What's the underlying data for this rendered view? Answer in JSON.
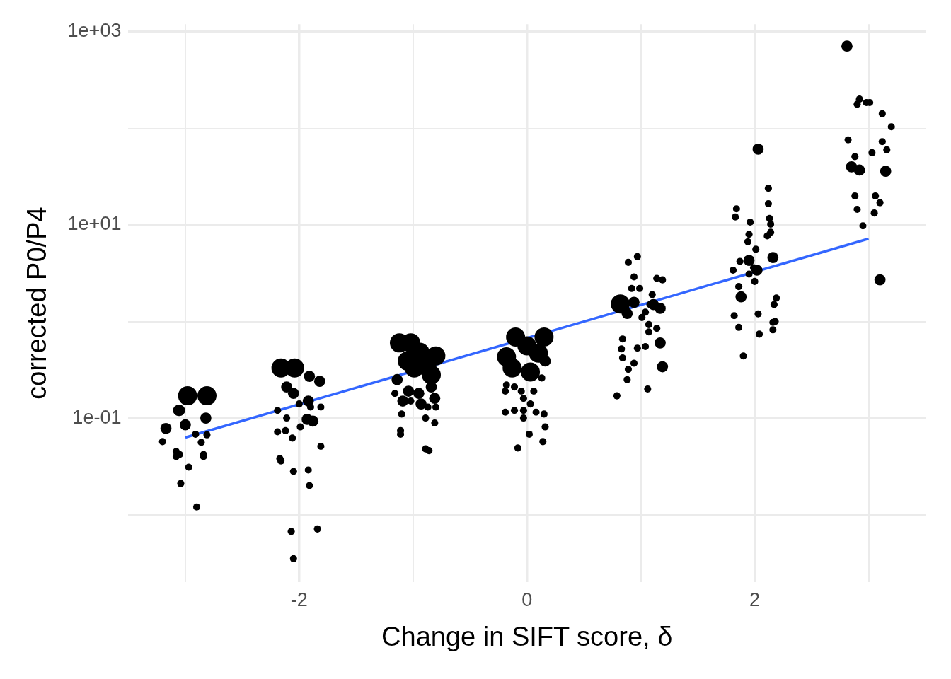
{
  "chart_data": {
    "type": "bubble",
    "xlabel": "Change in SIFT score, δ",
    "ylabel": "corrected P0/P4",
    "log": "y",
    "grid": true,
    "legend": false,
    "xlim": [
      -3.5,
      3.5
    ],
    "xticks": [
      {
        "value": -3,
        "label": null
      },
      -2,
      {
        "value": -1,
        "label": null
      },
      0,
      {
        "value": 1,
        "label": null
      },
      2,
      {
        "value": 3,
        "label": null
      }
    ],
    "ylim": [
      0.002,
      1200
    ],
    "yticks": [
      {
        "value": 0.01,
        "label": null
      },
      {
        "value": 0.1,
        "label": "1e-01"
      },
      {
        "value": 1,
        "label": null
      },
      {
        "value": 10,
        "label": "1e+01"
      },
      {
        "value": 100,
        "label": null
      },
      {
        "value": 1000,
        "label": "1e+03"
      }
    ],
    "series": [
      {
        "color": "#000000",
        "x": [
          -2.98,
          -2.81,
          -3.06,
          -2.82,
          -3.17,
          -3.2,
          -3.08,
          -3.05,
          -2.97,
          -3.04,
          -2.9,
          -2.84,
          -2.86,
          -2.81,
          -3.0,
          -2.91,
          -3.05,
          -3.08,
          -2.84,
          -2.16,
          -2.04,
          -1.91,
          -1.82,
          -2.11,
          -2.05,
          -1.92,
          -2.19,
          -2.11,
          -2.0,
          -1.9,
          -1.81,
          -2.19,
          -2.12,
          -2.06,
          -2.17,
          -2.16,
          -2.05,
          -1.92,
          -1.91,
          -2.07,
          -1.84,
          -2.05,
          -1.93,
          -1.88,
          -1.81,
          -1.99,
          -1.12,
          -1.02,
          -0.94,
          -0.8,
          -1.05,
          -0.88,
          -0.84,
          -0.99,
          -1.14,
          -1.04,
          -0.95,
          -0.84,
          -1.09,
          -0.93,
          -0.81,
          -1.16,
          -1.02,
          -0.87,
          -0.8,
          -1.1,
          -0.89,
          -0.81,
          -1.11,
          -1.11,
          -0.89,
          -0.86,
          -0.1,
          0.15,
          -0.18,
          0.0,
          -0.13,
          0.03,
          0.1,
          0.16,
          -0.18,
          -0.11,
          -0.19,
          -0.05,
          -0.03,
          0.06,
          0.13,
          0.03,
          -0.19,
          -0.11,
          -0.03,
          0.08,
          0.15,
          -0.03,
          0.02,
          0.16,
          -0.08,
          0.14,
          0.82,
          0.88,
          1.17,
          1.19,
          1.11,
          1.17,
          0.94,
          0.89,
          0.97,
          0.94,
          0.92,
          0.99,
          1.14,
          1.1,
          1.19,
          1.08,
          0.84,
          0.83,
          1.07,
          0.97,
          1.04,
          0.84,
          0.89,
          0.94,
          0.88,
          0.79,
          1.06,
          1.01,
          1.07,
          1.14,
          1.04,
          2.03,
          2.16,
          1.88,
          2.02,
          1.95,
          1.84,
          1.83,
          1.96,
          2.12,
          2.12,
          2.13,
          2.14,
          2.14,
          2.11,
          1.95,
          1.94,
          2.01,
          1.87,
          1.81,
          1.86,
          2.0,
          2.19,
          2.17,
          1.82,
          1.86,
          2.03,
          2.16,
          2.18,
          2.16,
          2.04,
          1.9,
          1.95,
          1.99,
          2.81,
          2.9,
          2.92,
          2.98,
          3.01,
          3.12,
          3.2,
          2.82,
          3.12,
          3.03,
          3.16,
          3.1,
          2.95,
          3.06,
          3.05,
          2.9,
          2.88,
          2.88,
          2.85,
          2.92,
          3.15,
          3.1
        ],
        "values": [
          0.17,
          0.17,
          0.12,
          0.1,
          0.078,
          0.057,
          0.045,
          0.042,
          0.031,
          0.021,
          0.012,
          0.04,
          0.056,
          0.067,
          0.085,
          0.068,
          0.12,
          0.04,
          0.042,
          0.33,
          0.33,
          0.27,
          0.24,
          0.21,
          0.18,
          0.15,
          0.12,
          0.1,
          0.14,
          0.13,
          0.13,
          0.072,
          0.074,
          0.062,
          0.038,
          0.036,
          0.028,
          0.029,
          0.02,
          0.0067,
          0.0071,
          0.0035,
          0.097,
          0.093,
          0.051,
          0.081,
          0.6,
          0.6,
          0.48,
          0.44,
          0.39,
          0.34,
          0.28,
          0.33,
          0.25,
          0.19,
          0.18,
          0.21,
          0.15,
          0.14,
          0.16,
          0.18,
          0.15,
          0.13,
          0.13,
          0.11,
          0.1,
          0.089,
          0.074,
          0.068,
          0.048,
          0.046,
          0.69,
          0.69,
          0.43,
          0.56,
          0.33,
          0.3,
          0.47,
          0.39,
          0.22,
          0.21,
          0.19,
          0.19,
          0.16,
          0.19,
          0.26,
          0.14,
          0.115,
          0.12,
          0.12,
          0.115,
          0.11,
          0.1,
          0.068,
          0.081,
          0.049,
          0.057,
          1.52,
          1.21,
          0.6,
          0.34,
          1.5,
          1.37,
          1.58,
          4.1,
          4.7,
          2.9,
          2.2,
          2.2,
          2.8,
          1.9,
          2.7,
          1.5,
          0.66,
          0.52,
          0.78,
          0.53,
          0.55,
          0.42,
          0.32,
          0.37,
          0.25,
          0.17,
          0.2,
          1.1,
          0.93,
          0.85,
          1.25,
          61,
          4.6,
          1.8,
          3.4,
          4.3,
          14.7,
          12.1,
          10.7,
          24,
          16.6,
          11.7,
          10.2,
          8.4,
          7.7,
          8,
          6.7,
          5.6,
          4.2,
          3.4,
          2.3,
          2.6,
          1.75,
          1.5,
          1.15,
          0.87,
          1.2,
          0.98,
          1.0,
          0.82,
          0.74,
          0.44,
          3.1,
          3.6,
          711,
          178,
          201,
          185,
          185,
          142,
          104,
          76,
          73,
          56,
          60,
          17,
          9.8,
          20,
          13.3,
          14.5,
          20,
          51,
          40,
          37,
          36,
          2.7
        ],
        "sizes": [
          1,
          1,
          0.34,
          0.34,
          0.34,
          0.14,
          0.14,
          0.14,
          0.14,
          0.14,
          0.14,
          0.14,
          0.14,
          0.14,
          0.34,
          0.14,
          0.34,
          0.14,
          0.14,
          1,
          1,
          0.34,
          0.34,
          0.34,
          0.34,
          0.34,
          0.14,
          0.14,
          0.14,
          0.14,
          0.14,
          0.14,
          0.14,
          0.14,
          0.14,
          0.14,
          0.14,
          0.14,
          0.14,
          0.14,
          0.14,
          0.14,
          0.34,
          0.34,
          0.14,
          0.14,
          1,
          1,
          1,
          1,
          1,
          1,
          1,
          1,
          0.34,
          0.34,
          0.34,
          0.34,
          0.34,
          0.34,
          0.34,
          0.14,
          0.14,
          0.14,
          0.14,
          0.14,
          0.14,
          0.14,
          0.14,
          0.14,
          0.14,
          0.14,
          1,
          1,
          1,
          1,
          1,
          1,
          1,
          0.34,
          0.14,
          0.14,
          0.14,
          0.14,
          0.14,
          0.14,
          0.14,
          0.14,
          0.14,
          0.14,
          0.14,
          0.14,
          0.14,
          0.14,
          0.14,
          0.14,
          0.14,
          0.14,
          1,
          0.34,
          0.34,
          0.34,
          0.34,
          0.34,
          0.34,
          0.14,
          0.14,
          0.14,
          0.14,
          0.14,
          0.14,
          0.14,
          0.14,
          0.14,
          0.14,
          0.14,
          0.14,
          0.14,
          0.14,
          0.14,
          0.14,
          0.14,
          0.14,
          0.14,
          0.14,
          0.14,
          0.14,
          0.14,
          0.14,
          0.34,
          0.34,
          0.34,
          0.34,
          0.34,
          0.14,
          0.14,
          0.14,
          0.14,
          0.14,
          0.14,
          0.14,
          0.14,
          0.14,
          0.14,
          0.14,
          0.14,
          0.14,
          0.14,
          0.14,
          0.14,
          0.14,
          0.14,
          0.14,
          0.14,
          0.14,
          0.14,
          0.14,
          0.14,
          0.14,
          0.14,
          0.14,
          0.14,
          0.34,
          0.14,
          0.14,
          0.14,
          0.14,
          0.14,
          0.14,
          0.14,
          0.14,
          0.14,
          0.14,
          0.14,
          0.14,
          0.14,
          0.14,
          0.14,
          0.14,
          0.14,
          0.34,
          0.34,
          0.34,
          0.34
        ]
      },
      {
        "type": "line",
        "color": "#3366ff",
        "x": [
          -3,
          3
        ],
        "values": [
          0.063,
          7.2
        ]
      }
    ]
  }
}
